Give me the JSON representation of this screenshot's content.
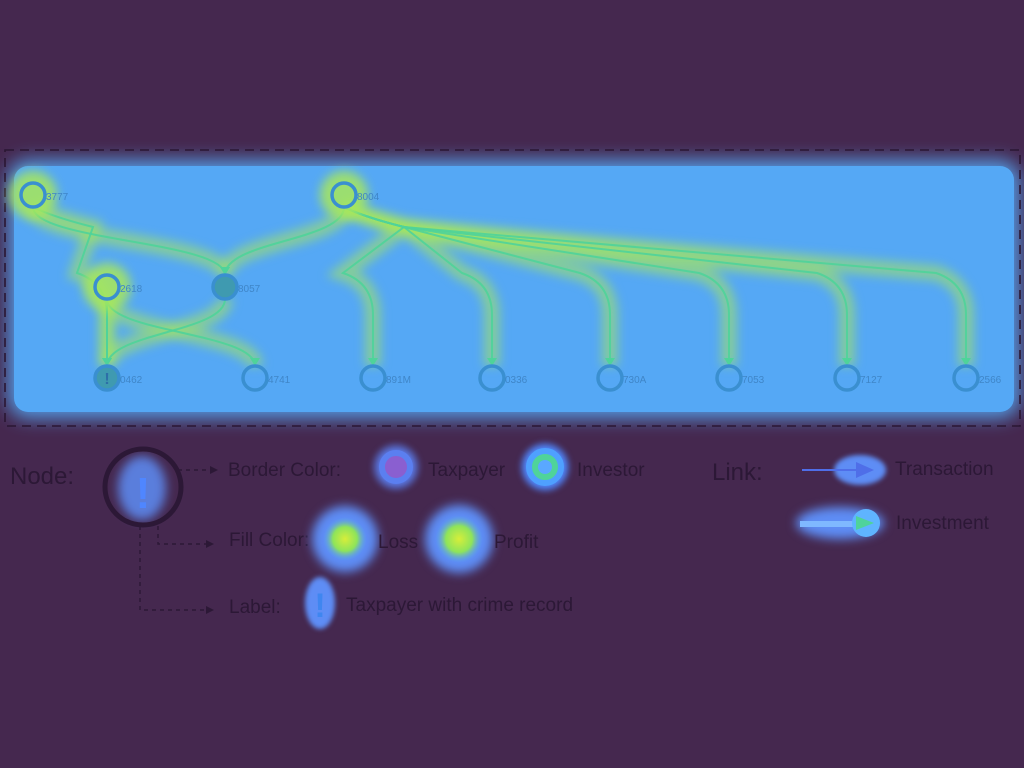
{
  "graph": {
    "nodes": [
      {
        "id": "n1",
        "label": "3777"
      },
      {
        "id": "n2",
        "label": "8004"
      },
      {
        "id": "n3",
        "label": "2618"
      },
      {
        "id": "n4",
        "label": "8057"
      },
      {
        "id": "n5",
        "label": "0462",
        "crime_record": true
      },
      {
        "id": "n6",
        "label": "4741"
      },
      {
        "id": "n7",
        "label": "891M"
      },
      {
        "id": "n8",
        "label": "0336"
      },
      {
        "id": "n9",
        "label": "730A"
      },
      {
        "id": "n10",
        "label": "7053"
      },
      {
        "id": "n11",
        "label": "7127"
      },
      {
        "id": "n12",
        "label": "2566"
      }
    ],
    "links": [
      {
        "source": "n1",
        "target": "n4"
      },
      {
        "source": "n1",
        "target": "n5"
      },
      {
        "source": "n3",
        "target": "n5"
      },
      {
        "source": "n3",
        "target": "n6"
      },
      {
        "source": "n4",
        "target": "n5"
      },
      {
        "source": "n2",
        "target": "n4"
      },
      {
        "source": "n2",
        "target": "n7"
      },
      {
        "source": "n2",
        "target": "n8"
      },
      {
        "source": "n2",
        "target": "n9"
      },
      {
        "source": "n2",
        "target": "n10"
      },
      {
        "source": "n2",
        "target": "n11"
      },
      {
        "source": "n2",
        "target": "n12"
      }
    ]
  },
  "legend": {
    "node_title": "Node:",
    "border_color_label": "Border Color:",
    "taxpayer_label": "Taxpayer",
    "investor_label": "Investor",
    "fill_color_label": "Fill Color:",
    "loss_label": "Loss",
    "profit_label": "Profit",
    "label_label": "Label:",
    "crime_label": "Taxpayer with crime record",
    "link_title": "Link:",
    "transaction_label": "Transaction",
    "investment_label": "Investment",
    "crime_glyph": "!"
  },
  "colors": {
    "background": "#45284f",
    "heat_base": "#55a8f5",
    "heat_hot": "#a8e85a",
    "heat_mid": "#4fd39a",
    "node_border": "#3a8fd0",
    "label_text": "#3f86c8",
    "legend_text": "#2c1836"
  }
}
